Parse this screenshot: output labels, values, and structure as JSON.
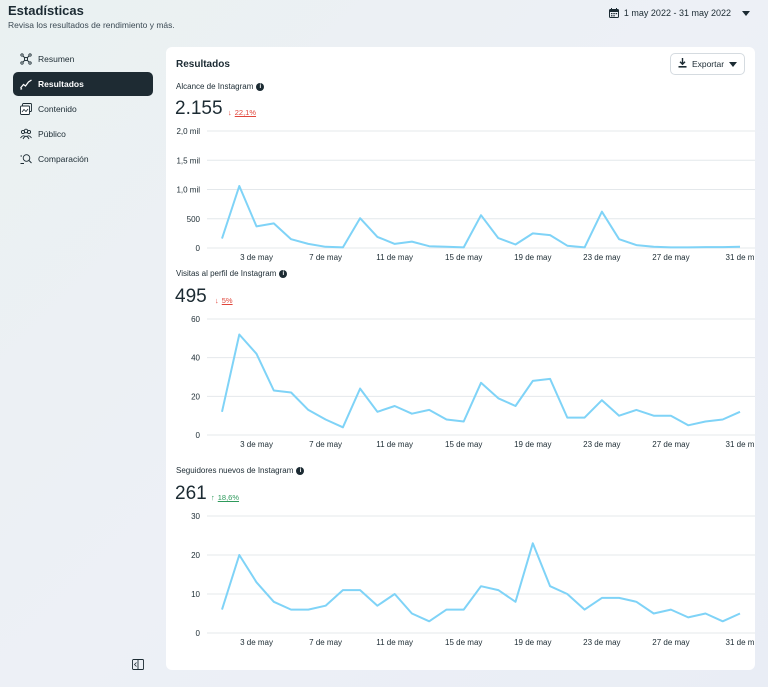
{
  "header": {
    "title": "Estadísticas",
    "subtitle": "Revisa los resultados de rendimiento y más.",
    "date_range": "1 may 2022 - 31 may 2022"
  },
  "sidebar": {
    "items": [
      {
        "label": "Resumen",
        "icon": "overview-icon",
        "active": false
      },
      {
        "label": "Resultados",
        "icon": "trend-line-icon",
        "active": true
      },
      {
        "label": "Contenido",
        "icon": "content-icon",
        "active": false
      },
      {
        "label": "Público",
        "icon": "audience-icon",
        "active": false
      },
      {
        "label": "Comparación",
        "icon": "compare-icon",
        "active": false
      }
    ]
  },
  "card": {
    "title": "Resultados",
    "export_label": "Exportar"
  },
  "colors": {
    "line": "#7fd3f7",
    "grid": "#e4e8eb",
    "negative": "#e0463b",
    "positive": "#2e9a5c",
    "active_nav": "#1e2b33"
  },
  "chart_data": [
    {
      "type": "line",
      "title": "Alcance de Instagram",
      "total": "2.155",
      "change": {
        "direction": "down",
        "value": "22,1%"
      },
      "x_ticks": [
        "3 de may",
        "7 de may",
        "11 de may",
        "15 de may",
        "19 de may",
        "23 de may",
        "27 de may",
        "31 de m"
      ],
      "y_ticks": [
        "0",
        "500",
        "1,0 mil",
        "1,5 mil",
        "2,0 mil"
      ],
      "ylim": [
        0,
        2000
      ],
      "x": [
        1,
        2,
        3,
        4,
        5,
        6,
        7,
        8,
        9,
        10,
        11,
        12,
        13,
        14,
        15,
        16,
        17,
        18,
        19,
        20,
        21,
        22,
        23,
        24,
        25,
        26,
        27,
        28,
        29,
        30,
        31
      ],
      "values": [
        160,
        1060,
        370,
        420,
        150,
        70,
        20,
        10,
        510,
        190,
        70,
        110,
        30,
        20,
        10,
        560,
        170,
        60,
        250,
        220,
        40,
        10,
        620,
        150,
        50,
        20,
        10,
        10,
        15,
        15,
        20
      ]
    },
    {
      "type": "line",
      "title": "Visitas al perfil de Instagram",
      "total": "495",
      "change": {
        "direction": "down",
        "value": "5%"
      },
      "x_ticks": [
        "3 de may",
        "7 de may",
        "11 de may",
        "15 de may",
        "19 de may",
        "23 de may",
        "27 de may",
        "31 de m"
      ],
      "y_ticks": [
        "0",
        "20",
        "40",
        "60"
      ],
      "ylim": [
        0,
        60
      ],
      "x": [
        1,
        2,
        3,
        4,
        5,
        6,
        7,
        8,
        9,
        10,
        11,
        12,
        13,
        14,
        15,
        16,
        17,
        18,
        19,
        20,
        21,
        22,
        23,
        24,
        25,
        26,
        27,
        28,
        29,
        30,
        31
      ],
      "values": [
        12,
        52,
        42,
        23,
        22,
        13,
        8,
        4,
        24,
        12,
        15,
        11,
        13,
        8,
        7,
        27,
        19,
        15,
        28,
        29,
        9,
        9,
        18,
        10,
        13,
        10,
        10,
        5,
        7,
        8,
        12
      ]
    },
    {
      "type": "line",
      "title": "Seguidores nuevos de Instagram",
      "total": "261",
      "change": {
        "direction": "up",
        "value": "18,6%"
      },
      "x_ticks": [
        "3 de may",
        "7 de may",
        "11 de may",
        "15 de may",
        "19 de may",
        "23 de may",
        "27 de may",
        "31 de m"
      ],
      "y_ticks": [
        "0",
        "10",
        "20",
        "30"
      ],
      "ylim": [
        0,
        30
      ],
      "x": [
        1,
        2,
        3,
        4,
        5,
        6,
        7,
        8,
        9,
        10,
        11,
        12,
        13,
        14,
        15,
        16,
        17,
        18,
        19,
        20,
        21,
        22,
        23,
        24,
        25,
        26,
        27,
        28,
        29,
        30,
        31
      ],
      "values": [
        6,
        20,
        13,
        8,
        6,
        6,
        7,
        11,
        11,
        7,
        10,
        5,
        3,
        6,
        6,
        12,
        11,
        8,
        23,
        12,
        10,
        6,
        9,
        9,
        8,
        5,
        6,
        4,
        5,
        3,
        5
      ]
    }
  ]
}
